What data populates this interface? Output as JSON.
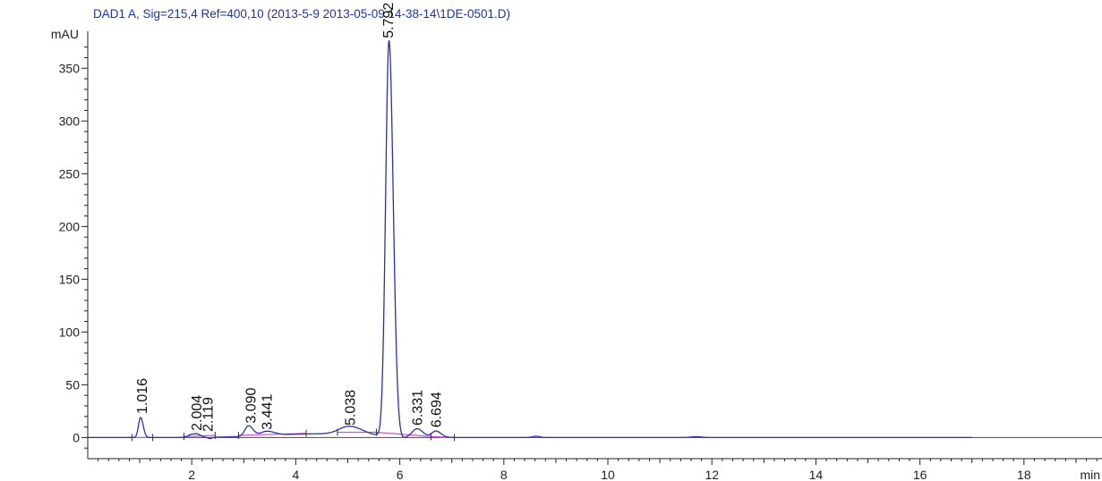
{
  "chart_data": {
    "type": "line",
    "title": "DAD1 A, Sig=215,4 Ref=400,10 (2013-5-9 2013-05-09 14-38-14\\1DE-0501.D)",
    "xlabel": "min",
    "ylabel": "mAU",
    "xlim": [
      0,
      19.5
    ],
    "ylim": [
      -20,
      385
    ],
    "x_ticks": [
      2,
      4,
      6,
      8,
      10,
      12,
      14,
      16,
      18
    ],
    "y_ticks": [
      0,
      50,
      100,
      150,
      200,
      250,
      300,
      350
    ],
    "grid": false,
    "colors": {
      "signal": "#2a2fb0",
      "baseline": "#d24fd2",
      "title": "#1f2fb3"
    },
    "peaks": [
      {
        "rt": 1.016,
        "label": "1.016",
        "height": 19,
        "width": 0.04,
        "label_offset": 0.12
      },
      {
        "rt": 2.004,
        "label": "2.004",
        "height": 3,
        "width": 0.07,
        "label_offset": 0.18
      },
      {
        "rt": 2.119,
        "label": "2.119",
        "height": 2,
        "width": 0.05,
        "label_offset": 0.28
      },
      {
        "rt": 3.09,
        "label": "3.090",
        "height": 10,
        "width": 0.07,
        "label_offset": 0.14
      },
      {
        "rt": 3.441,
        "label": "3.441",
        "height": 4,
        "width": 0.12,
        "label_offset": 0.1
      },
      {
        "rt": 5.038,
        "label": "5.038",
        "height": 8,
        "width": 0.2,
        "label_offset": 0.1
      },
      {
        "rt": 5.792,
        "label": "5.792",
        "height": 375,
        "width": 0.065,
        "label_offset": 0.08
      },
      {
        "rt": 6.331,
        "label": "6.331",
        "height": 8,
        "width": 0.09,
        "label_offset": 0.1
      },
      {
        "rt": 6.694,
        "label": "6.694",
        "height": 6,
        "width": 0.08,
        "label_offset": 0.1
      }
    ],
    "minor_bumps": [
      {
        "rt": 8.62,
        "height": 1.2,
        "width": 0.07
      },
      {
        "rt": 11.7,
        "height": 0.8,
        "width": 0.1
      }
    ],
    "baseline_segments": [
      {
        "x": [
          0.85,
          1.25
        ],
        "y": [
          0,
          0
        ]
      },
      {
        "x": [
          1.85,
          2.45
        ],
        "y": [
          1,
          2
        ]
      },
      {
        "x": [
          2.9,
          4.2
        ],
        "y": [
          2,
          4
        ]
      },
      {
        "x": [
          4.8,
          5.55
        ],
        "y": [
          5,
          5
        ]
      },
      {
        "x": [
          5.55,
          6.6
        ],
        "y": [
          5,
          1
        ]
      },
      {
        "x": [
          6.6,
          7.05
        ],
        "y": [
          1,
          0
        ]
      }
    ]
  }
}
